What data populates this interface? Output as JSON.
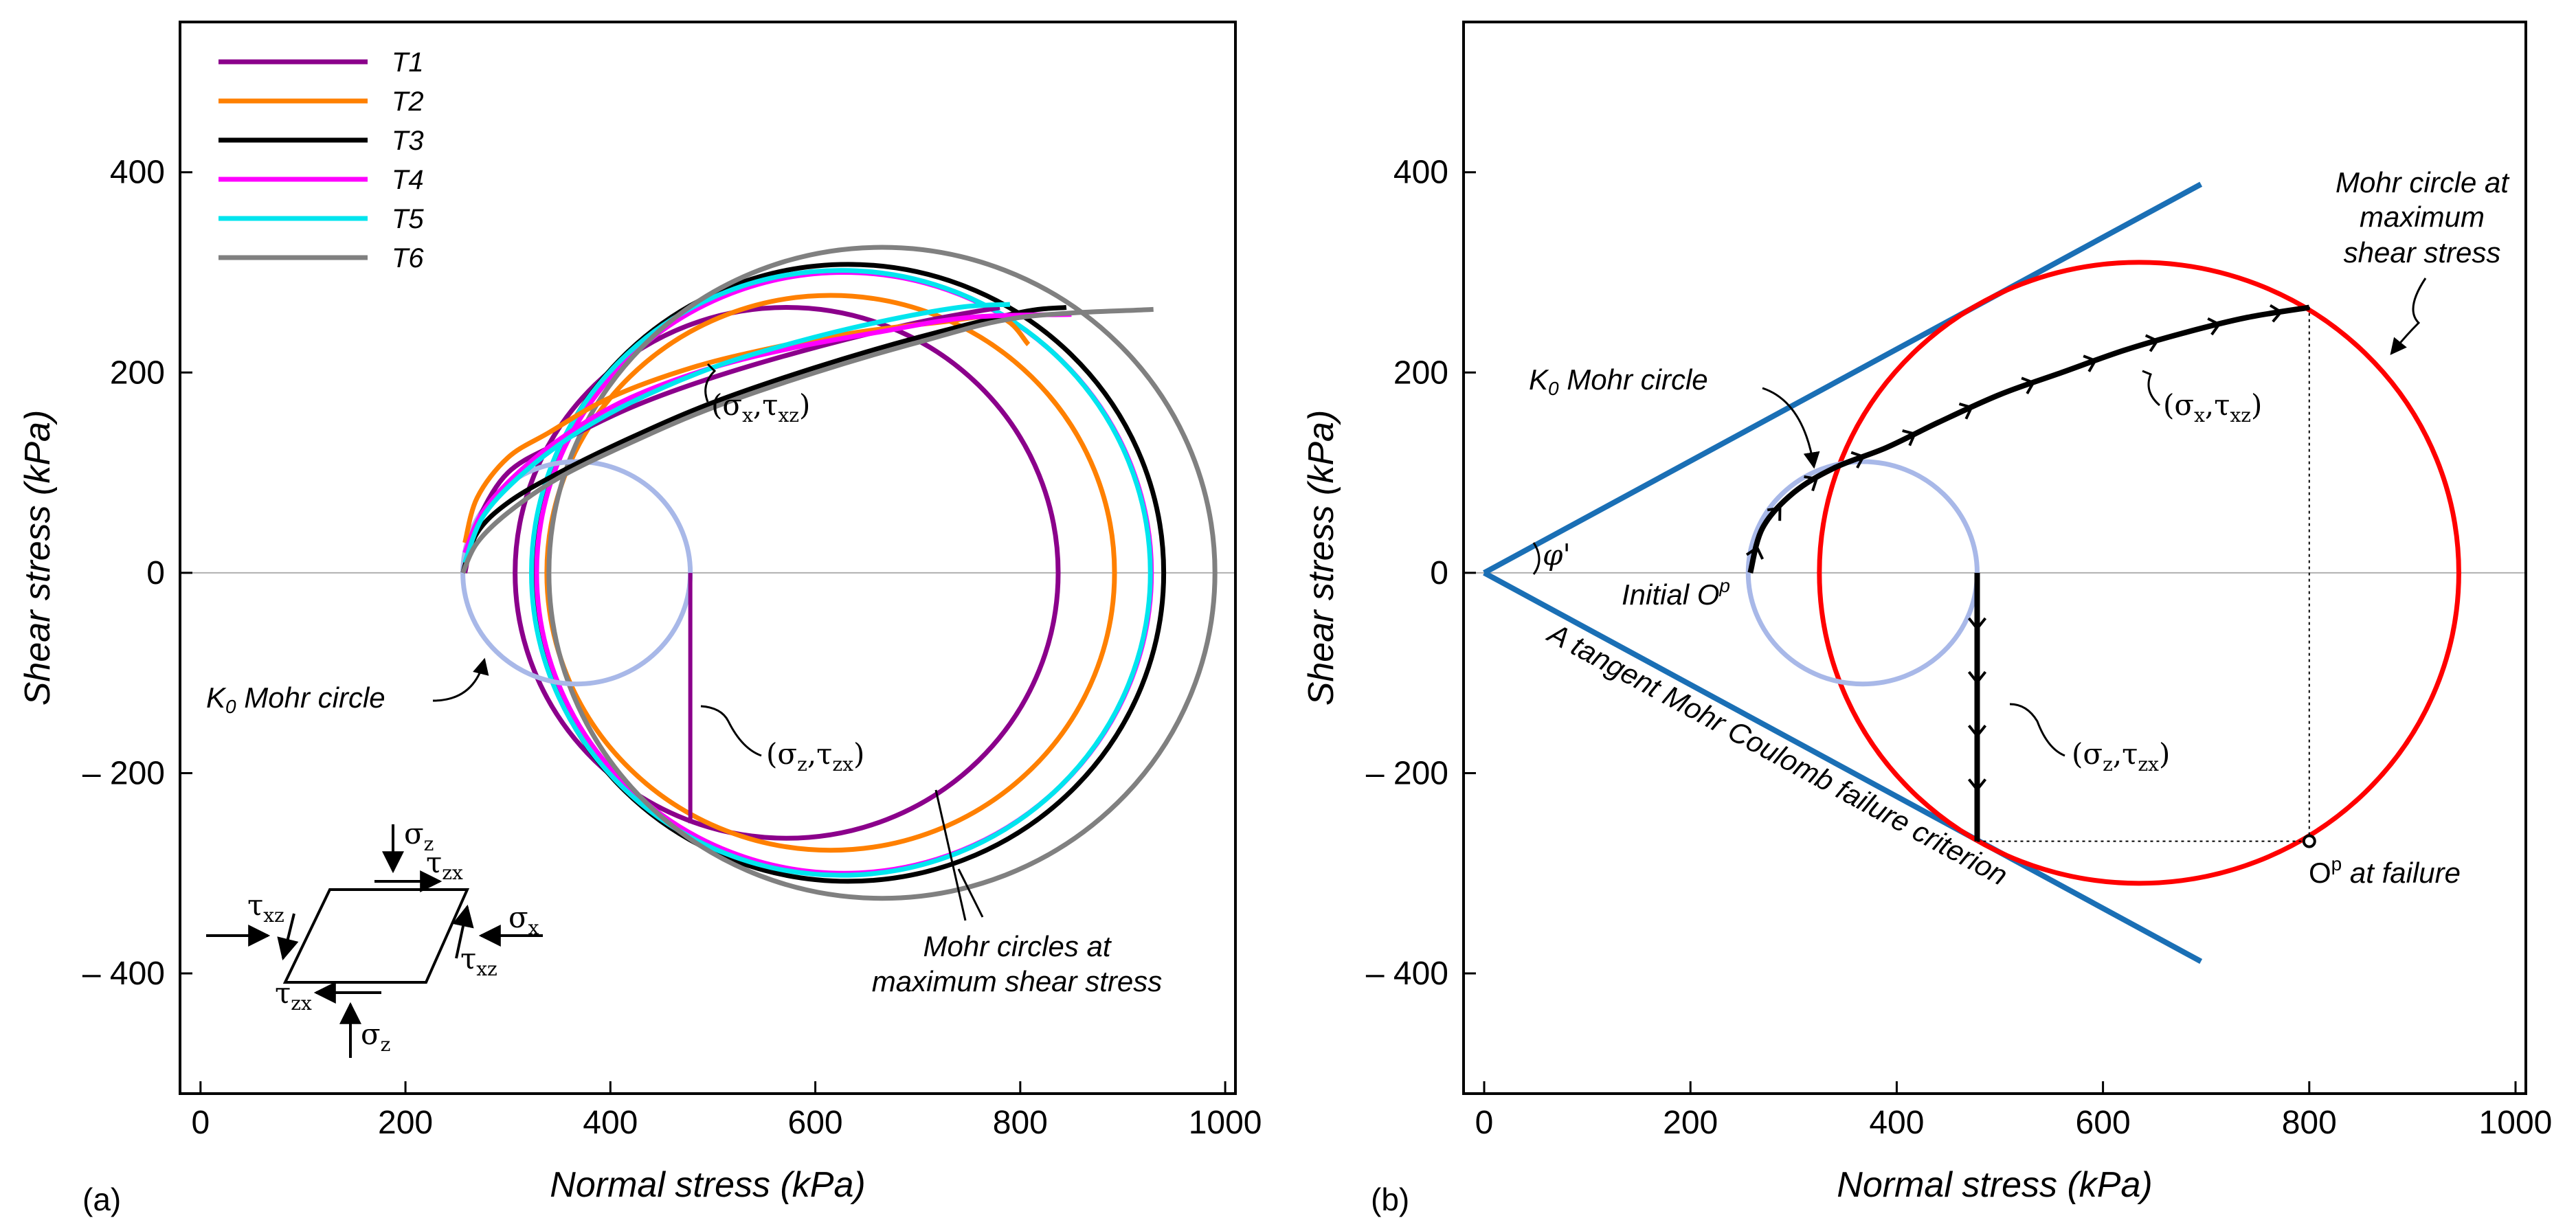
{
  "panel_labels": [
    "(a)",
    "(b)"
  ],
  "chart_data": [
    {
      "type": "line",
      "panel": "(a)",
      "xlabel": "Normal stress (kPa)",
      "ylabel": "Shear stress (kPa)",
      "xlim": [
        -20,
        1010
      ],
      "ylim": [
        -520,
        550
      ],
      "xticks": [
        0,
        200,
        400,
        600,
        800,
        1000
      ],
      "yticks": [
        400,
        200,
        0,
        -200,
        -400
      ],
      "ytick_labels": [
        "400",
        "200",
        "0",
        "– 200",
        "– 400"
      ],
      "legend_placement": "top-left",
      "legend": [
        "T1",
        "T2",
        "T3",
        "T4",
        "T5",
        "T6"
      ],
      "colors": {
        "T1": "#8b008b",
        "T2": "#ff8000",
        "T3": "#000000",
        "T4": "#ff00ff",
        "T5": "#00e5ee",
        "T6": "#808080",
        "k0": "#a8b8e8"
      },
      "series": [
        {
          "name": "T1",
          "color": "#8b008b",
          "stress_path": [
            [
              258,
              0
            ],
            [
              270,
              50
            ],
            [
              300,
              100
            ],
            [
              350,
              130
            ],
            [
              420,
              165
            ],
            [
              500,
              195
            ],
            [
              600,
              225
            ],
            [
              700,
              250
            ],
            [
              780,
              265
            ]
          ],
          "mohr_circle": {
            "center": [
              572,
              0
            ],
            "radius": 265
          }
        },
        {
          "name": "T2",
          "color": "#ff8000",
          "stress_path": [
            [
              258,
              30
            ],
            [
              270,
              75
            ],
            [
              300,
              115
            ],
            [
              340,
              140
            ],
            [
              400,
              175
            ],
            [
              480,
              205
            ],
            [
              560,
              225
            ],
            [
              640,
              240
            ],
            [
              720,
              250
            ],
            [
              780,
              255
            ],
            [
              808,
              228
            ]
          ],
          "mohr_circle": {
            "center": [
              615,
              0
            ],
            "radius": 277
          }
        },
        {
          "name": "T3",
          "color": "#000000",
          "stress_path": [
            [
              256,
              0
            ],
            [
              270,
              40
            ],
            [
              300,
              70
            ],
            [
              350,
              100
            ],
            [
              420,
              135
            ],
            [
              500,
              170
            ],
            [
              600,
              205
            ],
            [
              700,
              235
            ],
            [
              800,
              260
            ],
            [
              845,
              265
            ]
          ],
          "mohr_circle": {
            "center": [
              632,
              0
            ],
            "radius": 308
          }
        },
        {
          "name": "T4",
          "color": "#ff00ff",
          "stress_path": [
            [
              258,
              20
            ],
            [
              275,
              60
            ],
            [
              310,
              100
            ],
            [
              360,
              140
            ],
            [
              420,
              175
            ],
            [
              500,
              205
            ],
            [
              580,
              225
            ],
            [
              660,
              240
            ],
            [
              750,
              255
            ],
            [
              850,
              258
            ]
          ],
          "mohr_circle": {
            "center": [
              628,
              0
            ],
            "radius": 300
          }
        },
        {
          "name": "T5",
          "color": "#00e5ee",
          "stress_path": [
            [
              258,
              10
            ],
            [
              275,
              55
            ],
            [
              310,
              95
            ],
            [
              360,
              135
            ],
            [
              420,
              170
            ],
            [
              500,
              205
            ],
            [
              580,
              230
            ],
            [
              660,
              250
            ],
            [
              740,
              265
            ],
            [
              790,
              268
            ]
          ],
          "mohr_circle": {
            "center": [
              625,
              0
            ],
            "radius": 302
          }
        },
        {
          "name": "T6",
          "color": "#808080",
          "stress_path": [
            [
              256,
              0
            ],
            [
              270,
              30
            ],
            [
              300,
              60
            ],
            [
              350,
              95
            ],
            [
              420,
              130
            ],
            [
              500,
              165
            ],
            [
              600,
              200
            ],
            [
              700,
              230
            ],
            [
              800,
              255
            ],
            [
              930,
              263
            ]
          ],
          "mohr_circle": {
            "center": [
              665,
              0
            ],
            "radius": 325
          }
        }
      ],
      "k0_circle": {
        "center": [
          367,
          0
        ],
        "radius": 111
      },
      "sigma_z_path": {
        "x": 478,
        "y": [
          0,
          -250
        ]
      },
      "annotations": {
        "sx_txz_open": "(σ",
        "sx_sub": "x",
        "sx_comma": ",τ",
        "sx_sub2": "xz",
        "sx_close": ")",
        "sz_open": "(σ",
        "sz_sub": "z",
        "sz_comma": ",τ",
        "sz_sub2": "zx",
        "sz_close": ")",
        "k0_label": "K",
        "k0_sub": "0",
        "k0_rest": " Mohr circle",
        "mohr_line1": "Mohr circles at",
        "mohr_line2": "maximum shear stress"
      },
      "element_symbols": {
        "sigma": "σ",
        "tau": "τ",
        "sub_z": "z",
        "sub_x": "x",
        "sub_xz": "xz",
        "sub_zx": "zx"
      }
    },
    {
      "type": "line",
      "panel": "(b)",
      "xlabel": "Normal stress (kPa)",
      "ylabel": "Shear stress (kPa)",
      "xlim": [
        -20,
        1010
      ],
      "ylim": [
        -520,
        550
      ],
      "xticks": [
        0,
        200,
        400,
        600,
        800,
        1000
      ],
      "yticks": [
        400,
        200,
        0,
        -200,
        -400
      ],
      "ytick_labels": [
        "400",
        "200",
        "0",
        "– 200",
        "– 400"
      ],
      "failure_envelope": {
        "origin": [
          0,
          0
        ],
        "end": [
          695,
          388
        ],
        "color": "#1a6fb5"
      },
      "failure_circle": {
        "center": [
          635,
          0
        ],
        "radius": 310,
        "color": "#ff0000"
      },
      "k0_circle": {
        "center": [
          367,
          0
        ],
        "radius": 111,
        "color": "#a8b8e8"
      },
      "stress_path": [
        [
          258,
          0
        ],
        [
          270,
          45
        ],
        [
          300,
          80
        ],
        [
          340,
          105
        ],
        [
          390,
          125
        ],
        [
          440,
          150
        ],
        [
          500,
          178
        ],
        [
          560,
          200
        ],
        [
          620,
          222
        ],
        [
          680,
          240
        ],
        [
          740,
          255
        ],
        [
          800,
          265
        ]
      ],
      "sigma_z_path": {
        "x": 478,
        "y": [
          0,
          -268
        ]
      },
      "failure_point": [
        800,
        -268
      ],
      "annotations": {
        "phi": "φ'",
        "initial_op": "Initial O",
        "op_sup": "p",
        "op_failure": "O",
        "op_failure_rest": " at failure",
        "k0_label": "K",
        "k0_sub": "0",
        "k0_rest": " Mohr circle",
        "mohr_line1": "Mohr circle at",
        "mohr_line2": "maximum",
        "mohr_line3": "shear stress",
        "criterion": "A tangent Mohr Coulomb failure criterion",
        "sx_open": "(σ",
        "sx_sub": "x",
        "sx_comma": ",τ",
        "sx_sub2": "xz",
        "sx_close": ")",
        "sz_open": "(σ",
        "sz_sub": "z",
        "sz_comma": ",τ",
        "sz_sub2": "zx",
        "sz_close": ")"
      }
    }
  ]
}
